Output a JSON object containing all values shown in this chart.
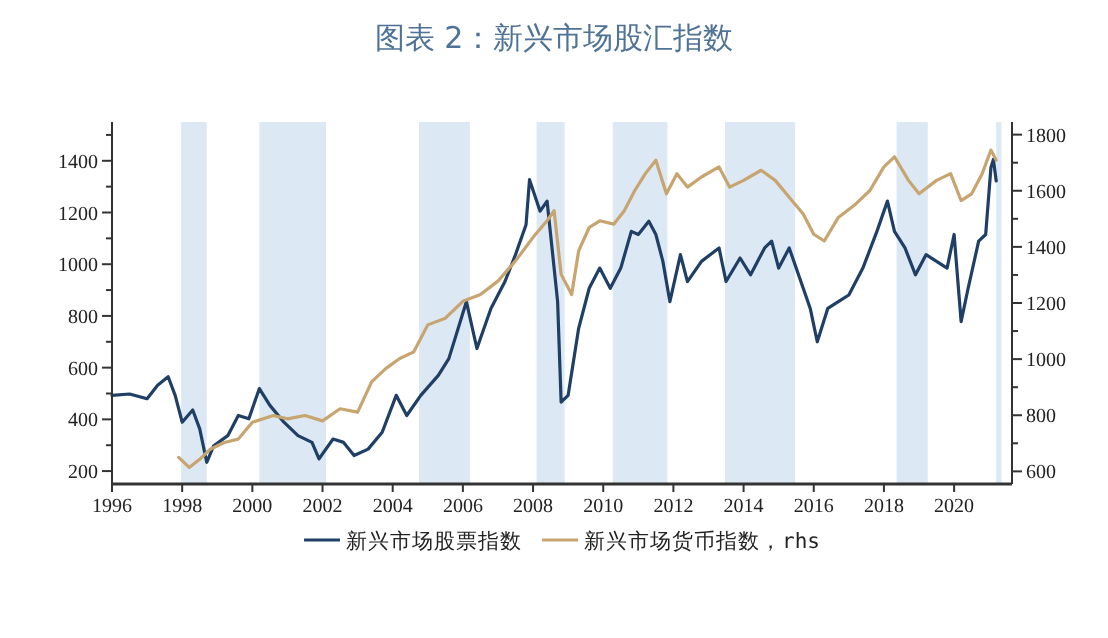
{
  "chart_data": {
    "type": "line",
    "title": "图表 2：新兴市场股汇指数",
    "xlim": [
      1996,
      2021.65
    ],
    "xticks": [
      1996,
      1998,
      2000,
      2002,
      2004,
      2006,
      2008,
      2010,
      2012,
      2014,
      2016,
      2018,
      2020
    ],
    "ylim": [
      150,
      1550
    ],
    "yticks": [
      200,
      {
        "value": 300,
        "label": null
      },
      400,
      {
        "value": 500,
        "label": null
      },
      600,
      {
        "value": 700,
        "label": null
      },
      800,
      {
        "value": 900,
        "label": null
      },
      1000,
      {
        "value": 1100,
        "label": null
      },
      1200,
      {
        "value": 1300,
        "label": null
      },
      1400,
      {
        "value": 1500,
        "label": null
      }
    ],
    "y2lim": [
      555,
      1845
    ],
    "y2ticks": [
      600,
      {
        "value": 700,
        "label": null
      },
      800,
      {
        "value": 900,
        "label": null
      },
      1000,
      {
        "value": 1100,
        "label": null
      },
      1200,
      {
        "value": 1300,
        "label": null
      },
      1400,
      {
        "value": 1500,
        "label": null
      },
      1600,
      {
        "value": 1700,
        "label": null
      },
      1800
    ],
    "grid": false,
    "legend": "bottom",
    "line_style": "solid",
    "bands": [
      {
        "axis": "x",
        "from": 1997.97,
        "to": 1998.7,
        "color": "#dde8f5"
      },
      {
        "axis": "x",
        "from": 2000.2,
        "to": 2002.1,
        "color": "#dde8f5"
      },
      {
        "axis": "x",
        "from": 2004.75,
        "to": 2006.2,
        "color": "#dde8f5"
      },
      {
        "axis": "x",
        "from": 2008.1,
        "to": 2008.9,
        "color": "#dde8f5"
      },
      {
        "axis": "x",
        "from": 2010.27,
        "to": 2011.83,
        "color": "#dde8f5"
      },
      {
        "axis": "x",
        "from": 2013.47,
        "to": 2015.47,
        "color": "#dde8f5"
      },
      {
        "axis": "x",
        "from": 2018.36,
        "to": 2019.25,
        "color": "#dde8f5"
      },
      {
        "axis": "x",
        "from": 2021.2,
        "to": 2021.35,
        "color": "#dde8f5"
      }
    ],
    "series": [
      {
        "name": "新兴市场股票指数",
        "color": "#1f3f66",
        "x": [
          1996.0,
          1996.5,
          1997.0,
          1997.3,
          1997.6,
          1997.8,
          1998.0,
          1998.3,
          1998.5,
          1998.7,
          1998.9,
          1999.3,
          1999.6,
          1999.9,
          2000.2,
          2000.5,
          2000.9,
          2001.3,
          2001.7,
          2001.9,
          2002.3,
          2002.6,
          2002.9,
          2003.3,
          2003.7,
          2004.1,
          2004.4,
          2004.8,
          2005.3,
          2005.6,
          2006.1,
          2006.4,
          2006.8,
          2007.2,
          2007.5,
          2007.8,
          2007.9,
          2008.2,
          2008.4,
          2008.5,
          2008.7,
          2008.8,
          2009.0,
          2009.3,
          2009.6,
          2009.9,
          2010.2,
          2010.5,
          2010.8,
          2011.0,
          2011.3,
          2011.5,
          2011.7,
          2011.9,
          2012.2,
          2012.4,
          2012.8,
          2013.3,
          2013.5,
          2013.9,
          2014.2,
          2014.6,
          2014.8,
          2015.0,
          2015.3,
          2015.7,
          2015.9,
          2016.1,
          2016.4,
          2016.7,
          2017.0,
          2017.4,
          2017.8,
          2018.1,
          2018.3,
          2018.6,
          2018.9,
          2019.2,
          2019.5,
          2019.8,
          2020.0,
          2020.2,
          2020.4,
          2020.7,
          2020.9,
          2021.05,
          2021.12,
          2021.2
        ],
        "values": [
          493,
          498,
          480,
          532,
          565,
          493,
          389,
          436,
          363,
          234,
          298,
          337,
          415,
          402,
          519,
          454,
          389,
          337,
          311,
          247,
          324,
          311,
          260,
          285,
          350,
          493,
          415,
          493,
          570,
          635,
          855,
          674,
          829,
          933,
          1037,
          1153,
          1327,
          1205,
          1244,
          1115,
          855,
          467,
          493,
          752,
          907,
          985,
          907,
          985,
          1127,
          1115,
          1166,
          1115,
          1011,
          855,
          1037,
          933,
          1011,
          1063,
          933,
          1024,
          959,
          1063,
          1089,
          985,
          1063,
          907,
          829,
          700,
          829,
          855,
          881,
          985,
          1127,
          1244,
          1127,
          1063,
          959,
          1037,
          1011,
          985,
          1115,
          778,
          907,
          1089,
          1115,
          1374,
          1405,
          1322
        ]
      },
      {
        "name": "新兴市场货币指数，rhs",
        "color": "#c8a46e",
        "axis": "y2",
        "x": [
          1997.9,
          1998.2,
          1998.5,
          1998.8,
          1999.2,
          1999.6,
          2000.0,
          2000.6,
          2001.0,
          2001.5,
          2002.0,
          2002.5,
          2003.0,
          2003.4,
          2003.8,
          2004.2,
          2004.6,
          2005.0,
          2005.5,
          2006.0,
          2006.5,
          2007.0,
          2007.5,
          2008.0,
          2008.4,
          2008.6,
          2008.8,
          2009.0,
          2009.1,
          2009.3,
          2009.6,
          2009.9,
          2010.3,
          2010.6,
          2010.9,
          2011.2,
          2011.5,
          2011.8,
          2012.1,
          2012.4,
          2012.8,
          2013.3,
          2013.6,
          2014.0,
          2014.5,
          2014.9,
          2015.3,
          2015.7,
          2016.0,
          2016.3,
          2016.7,
          2017.2,
          2017.6,
          2018.0,
          2018.3,
          2018.7,
          2019.0,
          2019.5,
          2019.9,
          2020.2,
          2020.5,
          2020.8,
          2021.05,
          2021.2
        ],
        "values": [
          650,
          614,
          643,
          679,
          703,
          715,
          775,
          799,
          787,
          799,
          780,
          823,
          811,
          919,
          966,
          1002,
          1026,
          1122,
          1146,
          1206,
          1230,
          1278,
          1350,
          1434,
          1493,
          1529,
          1302,
          1254,
          1230,
          1386,
          1469,
          1493,
          1481,
          1529,
          1601,
          1661,
          1709,
          1589,
          1661,
          1613,
          1649,
          1685,
          1613,
          1637,
          1673,
          1637,
          1577,
          1517,
          1445,
          1421,
          1505,
          1553,
          1601,
          1685,
          1721,
          1637,
          1589,
          1637,
          1661,
          1565,
          1589,
          1661,
          1745,
          1709
        ]
      }
    ]
  }
}
